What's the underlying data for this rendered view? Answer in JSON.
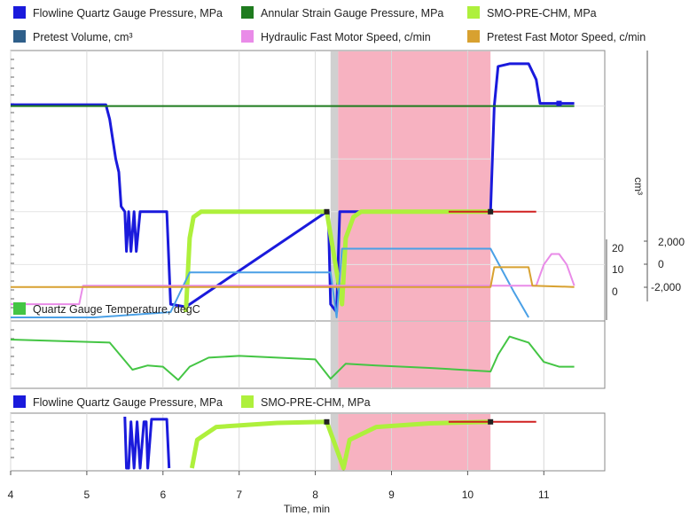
{
  "legend_top": [
    {
      "label": "Flowline Quartz Gauge Pressure, MPa",
      "color": "#1a1adc"
    },
    {
      "label": "Annular Strain Gauge Pressure, MPa",
      "color": "#1e7b1e"
    },
    {
      "label": "SMO-PRE-CHM, MPa",
      "color": "#aef03c"
    },
    {
      "label": "Pretest Volume, cm³",
      "color": "#2f5f8a"
    },
    {
      "label": "Hydraulic Fast Motor Speed, c/min",
      "color": "#e98be8"
    },
    {
      "label": "Pretest Fast Motor Speed, c/min",
      "color": "#d8a130"
    }
  ],
  "legend_mid": [
    {
      "label": "Quartz Gauge Temperature, degC",
      "color": "#44c544"
    }
  ],
  "legend_bottom": [
    {
      "label": "Flowline Quartz Gauge Pressure, MPa",
      "color": "#1a1adc"
    },
    {
      "label": "SMO-PRE-CHM, MPa",
      "color": "#aef03c"
    }
  ],
  "axis_labels": {
    "cm3": "cm³",
    "right_ticks_inner": [
      "20",
      "10",
      "0"
    ],
    "right_ticks_outer": [
      "2,000",
      "0",
      "-2,000"
    ],
    "x_title": "Time, min"
  },
  "chart_data": {
    "type": "line",
    "x_axis": {
      "label": "Time, min",
      "range": [
        4,
        11.8
      ],
      "ticks": [
        4,
        5,
        6,
        7,
        8,
        9,
        10,
        11
      ]
    },
    "shaded_regions": [
      {
        "x": [
          8.2,
          8.3
        ],
        "color": "#c8c8c8"
      },
      {
        "x": [
          8.3,
          10.3
        ],
        "color": "#f6a4b6"
      }
    ],
    "panels": [
      {
        "name": "pressure-panel",
        "right_axis_inner": {
          "ticks": [
            20,
            10,
            0
          ]
        },
        "right_axis_outer": {
          "label": "cm³",
          "ticks": [
            2000,
            0,
            -2000
          ]
        },
        "series": [
          {
            "name": "Flowline Quartz Gauge Pressure, MPa",
            "color": "#1a1adc",
            "points": [
              [
                4,
                0.805
              ],
              [
                5.25,
                0.805
              ],
              [
                5.3,
                0.75
              ],
              [
                5.38,
                0.6
              ],
              [
                5.42,
                0.55
              ],
              [
                5.45,
                0.42
              ],
              [
                5.5,
                0.4
              ],
              [
                5.52,
                0.25
              ],
              [
                5.55,
                0.4
              ],
              [
                5.58,
                0.25
              ],
              [
                5.62,
                0.4
              ],
              [
                5.65,
                0.25
              ],
              [
                5.7,
                0.4
              ],
              [
                6.05,
                0.4
              ],
              [
                6.1,
                0.05
              ],
              [
                6.3,
                0.04
              ],
              [
                8.15,
                0.4
              ],
              [
                8.17,
                0.4
              ],
              [
                8.2,
                0.05
              ],
              [
                8.28,
                0.02
              ],
              [
                8.32,
                0.4
              ],
              [
                10.3,
                0.4
              ],
              [
                10.35,
                0.8
              ],
              [
                10.4,
                0.95
              ],
              [
                10.55,
                0.96
              ],
              [
                10.8,
                0.96
              ],
              [
                10.9,
                0.9
              ],
              [
                10.95,
                0.81
              ],
              [
                11.4,
                0.81
              ]
            ]
          },
          {
            "name": "Annular Strain Gauge Pressure, MPa",
            "color": "#1e7b1e",
            "points": [
              [
                4,
                0.8
              ],
              [
                11.4,
                0.8
              ]
            ]
          },
          {
            "name": "SMO-PRE-CHM, MPa",
            "color": "#aef03c",
            "points": [
              [
                6.3,
                0.02
              ],
              [
                6.35,
                0.3
              ],
              [
                6.4,
                0.38
              ],
              [
                6.5,
                0.4
              ],
              [
                8.15,
                0.4
              ],
              [
                8.35,
                0.05
              ],
              [
                8.4,
                0.3
              ],
              [
                8.5,
                0.38
              ],
              [
                8.6,
                0.4
              ],
              [
                10.3,
                0.4
              ]
            ]
          },
          {
            "name": "Pretest Volume, cm³",
            "color": "#4aa0e6",
            "points": [
              [
                4,
                0.0
              ],
              [
                5.1,
                0.0
              ],
              [
                6.1,
                0.02
              ],
              [
                6.35,
                0.17
              ],
              [
                8.2,
                0.17
              ],
              [
                8.28,
                0.0
              ],
              [
                8.35,
                0.26
              ],
              [
                10.3,
                0.26
              ],
              [
                10.6,
                0.1
              ],
              [
                10.8,
                0.0
              ]
            ]
          },
          {
            "name": "Hydraulic Fast Motor Speed, c/min",
            "color": "#e98be8",
            "points": [
              [
                4,
                0.05
              ],
              [
                4.9,
                0.05
              ],
              [
                4.95,
                0.12
              ],
              [
                4.95,
                0.12
              ],
              [
                10.9,
                0.12
              ],
              [
                11.0,
                0.2
              ],
              [
                11.1,
                0.24
              ],
              [
                11.2,
                0.24
              ],
              [
                11.3,
                0.2
              ],
              [
                11.4,
                0.12
              ]
            ]
          },
          {
            "name": "Pretest Fast Motor Speed, c/min",
            "color": "#d8a130",
            "points": [
              [
                4,
                0.115
              ],
              [
                10.3,
                0.115
              ],
              [
                10.35,
                0.19
              ],
              [
                10.8,
                0.19
              ],
              [
                10.85,
                0.12
              ],
              [
                11.4,
                0.115
              ]
            ]
          },
          {
            "name": "Red trace",
            "color": "#d02020",
            "points": [
              [
                9.75,
                0.4
              ],
              [
                10.9,
                0.4
              ]
            ]
          }
        ]
      },
      {
        "name": "temperature-panel",
        "series": [
          {
            "name": "Quartz Gauge Temperature, degC",
            "color": "#44c544",
            "points": [
              [
                4,
                0.75
              ],
              [
                5.3,
                0.7
              ],
              [
                5.4,
                0.55
              ],
              [
                5.6,
                0.25
              ],
              [
                5.8,
                0.32
              ],
              [
                6.0,
                0.3
              ],
              [
                6.2,
                0.08
              ],
              [
                6.35,
                0.3
              ],
              [
                6.6,
                0.45
              ],
              [
                7.0,
                0.48
              ],
              [
                7.5,
                0.45
              ],
              [
                8.0,
                0.42
              ],
              [
                8.2,
                0.1
              ],
              [
                8.4,
                0.35
              ],
              [
                8.8,
                0.32
              ],
              [
                9.5,
                0.28
              ],
              [
                10.3,
                0.22
              ],
              [
                10.4,
                0.5
              ],
              [
                10.55,
                0.8
              ],
              [
                10.8,
                0.7
              ],
              [
                11.0,
                0.38
              ],
              [
                11.2,
                0.3
              ],
              [
                11.4,
                0.3
              ]
            ]
          }
        ]
      },
      {
        "name": "zoom-panel",
        "series": [
          {
            "name": "Flowline Quartz Gauge Pressure, MPa",
            "color": "#1a1adc",
            "points": [
              [
                5.5,
                1.0
              ],
              [
                5.52,
                0.0
              ],
              [
                5.55,
                0.0
              ],
              [
                5.58,
                0.9
              ],
              [
                5.62,
                0.0
              ],
              [
                5.66,
                0.9
              ],
              [
                5.7,
                0.0
              ],
              [
                5.75,
                0.9
              ],
              [
                5.78,
                0.9
              ],
              [
                5.8,
                0.0
              ],
              [
                5.85,
                0.95
              ],
              [
                6.05,
                0.95
              ],
              [
                6.08,
                0.0
              ]
            ]
          },
          {
            "name": "SMO-PRE-CHM, MPa",
            "color": "#aef03c",
            "points": [
              [
                6.38,
                0.0
              ],
              [
                6.45,
                0.55
              ],
              [
                6.7,
                0.8
              ],
              [
                7.5,
                0.88
              ],
              [
                8.15,
                0.9
              ],
              [
                8.37,
                0.0
              ],
              [
                8.45,
                0.55
              ],
              [
                8.8,
                0.8
              ],
              [
                9.5,
                0.87
              ],
              [
                10.3,
                0.9
              ]
            ]
          },
          {
            "name": "Red trace",
            "color": "#d02020",
            "points": [
              [
                9.75,
                0.9
              ],
              [
                10.9,
                0.9
              ]
            ]
          }
        ]
      }
    ]
  }
}
